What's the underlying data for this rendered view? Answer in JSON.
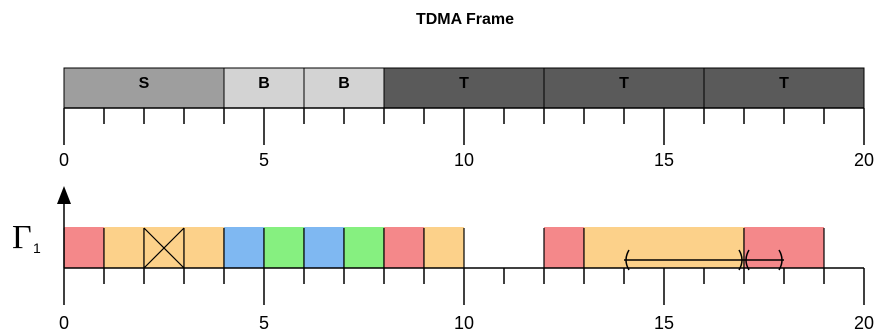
{
  "title": "TDMA Frame",
  "frame": {
    "segments": [
      {
        "label": "S",
        "start": 0,
        "end": 4,
        "color": "#9e9e9e"
      },
      {
        "label": "B",
        "start": 4,
        "end": 6,
        "color": "#d3d3d3"
      },
      {
        "label": "B",
        "start": 6,
        "end": 8,
        "color": "#d3d3d3"
      },
      {
        "label": "T",
        "start": 8,
        "end": 12,
        "color": "#5a5a5a"
      },
      {
        "label": "T",
        "start": 12,
        "end": 16,
        "color": "#5a5a5a"
      },
      {
        "label": "T",
        "start": 16,
        "end": 20,
        "color": "#5a5a5a"
      }
    ]
  },
  "axis": {
    "min": 0,
    "max": 20,
    "major_ticks": [
      0,
      5,
      10,
      15,
      20
    ],
    "tick_labels": [
      "0",
      "5",
      "10",
      "15",
      "20"
    ]
  },
  "schedule": {
    "y_label": "Γ",
    "y_label_sub": "1",
    "slots": [
      {
        "start": 0,
        "end": 1,
        "color": "#f4888a"
      },
      {
        "start": 1,
        "end": 2,
        "color": "#fcd18a"
      },
      {
        "start": 2,
        "end": 3,
        "color": "#fcd18a",
        "crossed": true
      },
      {
        "start": 3,
        "end": 4,
        "color": "#fcd18a"
      },
      {
        "start": 4,
        "end": 5,
        "color": "#7fb8f2"
      },
      {
        "start": 5,
        "end": 6,
        "color": "#86f080"
      },
      {
        "start": 6,
        "end": 7,
        "color": "#7fb8f2"
      },
      {
        "start": 7,
        "end": 8,
        "color": "#86f080"
      },
      {
        "start": 8,
        "end": 9,
        "color": "#f4888a"
      },
      {
        "start": 9,
        "end": 10,
        "color": "#fcd18a"
      },
      {
        "start": 12,
        "end": 13,
        "color": "#f4888a"
      },
      {
        "start": 13,
        "end": 17,
        "color": "#fcd18a"
      },
      {
        "start": 17,
        "end": 19,
        "color": "#f4888a"
      }
    ],
    "intervals": [
      {
        "start": 14,
        "end": 17
      },
      {
        "start": 17,
        "end": 18
      }
    ]
  },
  "colors": {
    "accent_line": "#000000"
  }
}
